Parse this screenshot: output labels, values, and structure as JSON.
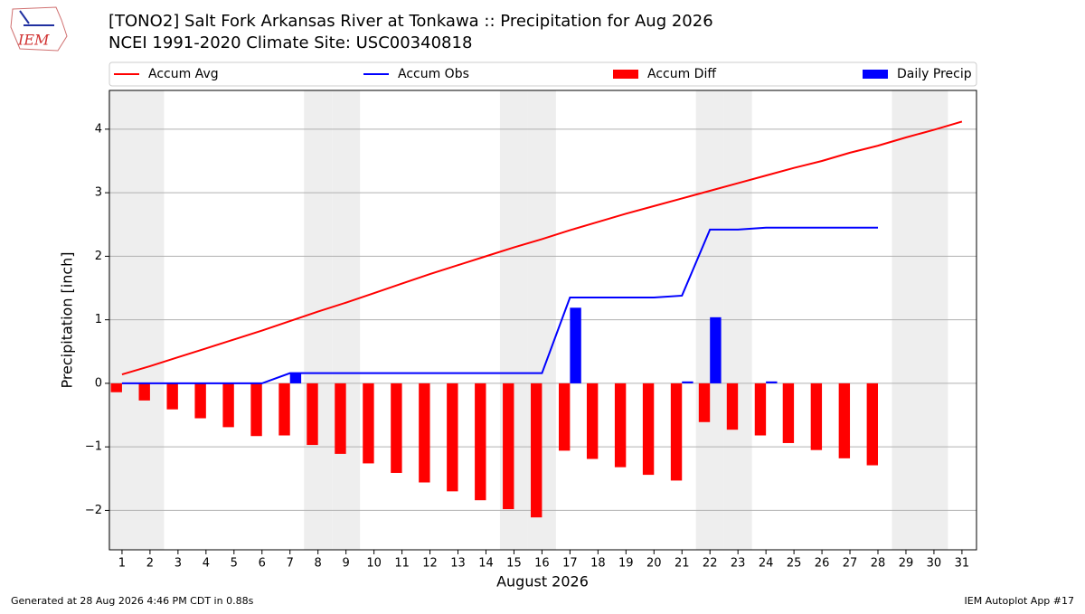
{
  "chart_data": {
    "type": "combo",
    "title": "[TONO2] Salt Fork Arkansas River at Tonkawa :: Precipitation for Aug 2026",
    "subtitle": "NCEI 1991-2020 Climate Site: USC00340818",
    "logo_text": "IEM",
    "x_label": "August 2026",
    "y_label": "Precipitation [inch]",
    "footer_left": "Generated at 28 Aug 2026 4:46 PM CDT in 0.88s",
    "footer_right": "IEM Autoplot App #17",
    "x": [
      1,
      2,
      3,
      4,
      5,
      6,
      7,
      8,
      9,
      10,
      11,
      12,
      13,
      14,
      15,
      16,
      17,
      18,
      19,
      20,
      21,
      22,
      23,
      24,
      25,
      26,
      27,
      28,
      29,
      30,
      31
    ],
    "xlim": [
      0.55,
      31.52
    ],
    "xticks": [
      1,
      2,
      3,
      4,
      5,
      6,
      7,
      8,
      9,
      10,
      11,
      12,
      13,
      14,
      15,
      16,
      17,
      18,
      19,
      20,
      21,
      22,
      23,
      24,
      25,
      26,
      27,
      28,
      29,
      30,
      31
    ],
    "ylim": [
      -2.62,
      4.61
    ],
    "yticks": [
      {
        "value": -2,
        "label": "−2"
      },
      {
        "value": -1,
        "label": "−1"
      },
      0,
      1,
      2,
      3,
      4
    ],
    "grid": true,
    "weekend_days": [
      1,
      2,
      8,
      9,
      15,
      16,
      22,
      23,
      29,
      30
    ],
    "series": [
      {
        "name": "Accum Avg",
        "type": "line",
        "color": "#ff0000",
        "values": [
          0.14,
          0.27,
          0.41,
          0.55,
          0.69,
          0.83,
          0.98,
          1.13,
          1.27,
          1.42,
          1.57,
          1.72,
          1.86,
          2.0,
          2.14,
          2.27,
          2.41,
          2.54,
          2.67,
          2.79,
          2.91,
          3.03,
          3.15,
          3.27,
          3.39,
          3.5,
          3.63,
          3.74,
          3.87,
          3.99,
          4.12
        ]
      },
      {
        "name": "Accum Obs",
        "type": "line",
        "color": "#0000ff",
        "values": [
          0,
          0,
          0,
          0,
          0,
          0,
          0.16,
          0.16,
          0.16,
          0.16,
          0.16,
          0.16,
          0.16,
          0.16,
          0.16,
          0.16,
          1.35,
          1.35,
          1.35,
          1.35,
          1.38,
          2.42,
          2.42,
          2.45,
          2.45,
          2.45,
          2.45,
          2.45,
          null,
          null,
          null
        ]
      },
      {
        "name": "Accum Diff",
        "type": "bar",
        "color": "#ff0000",
        "values": [
          -0.14,
          -0.27,
          -0.41,
          -0.55,
          -0.69,
          -0.83,
          -0.82,
          -0.97,
          -1.11,
          -1.26,
          -1.41,
          -1.56,
          -1.7,
          -1.84,
          -1.98,
          -2.11,
          -1.06,
          -1.19,
          -1.32,
          -1.44,
          -1.53,
          -0.61,
          -0.73,
          -0.82,
          -0.94,
          -1.05,
          -1.18,
          -1.29,
          null,
          null,
          null
        ]
      },
      {
        "name": "Daily Precip",
        "type": "bar",
        "color": "#0000ff",
        "values": [
          0,
          0,
          0,
          0,
          0,
          0,
          0.16,
          0,
          0,
          0,
          0,
          0,
          0,
          0,
          0,
          0,
          1.19,
          0,
          0,
          0,
          0.03,
          1.04,
          0,
          0.03,
          0,
          0,
          0,
          0,
          null,
          null,
          null
        ]
      }
    ]
  }
}
